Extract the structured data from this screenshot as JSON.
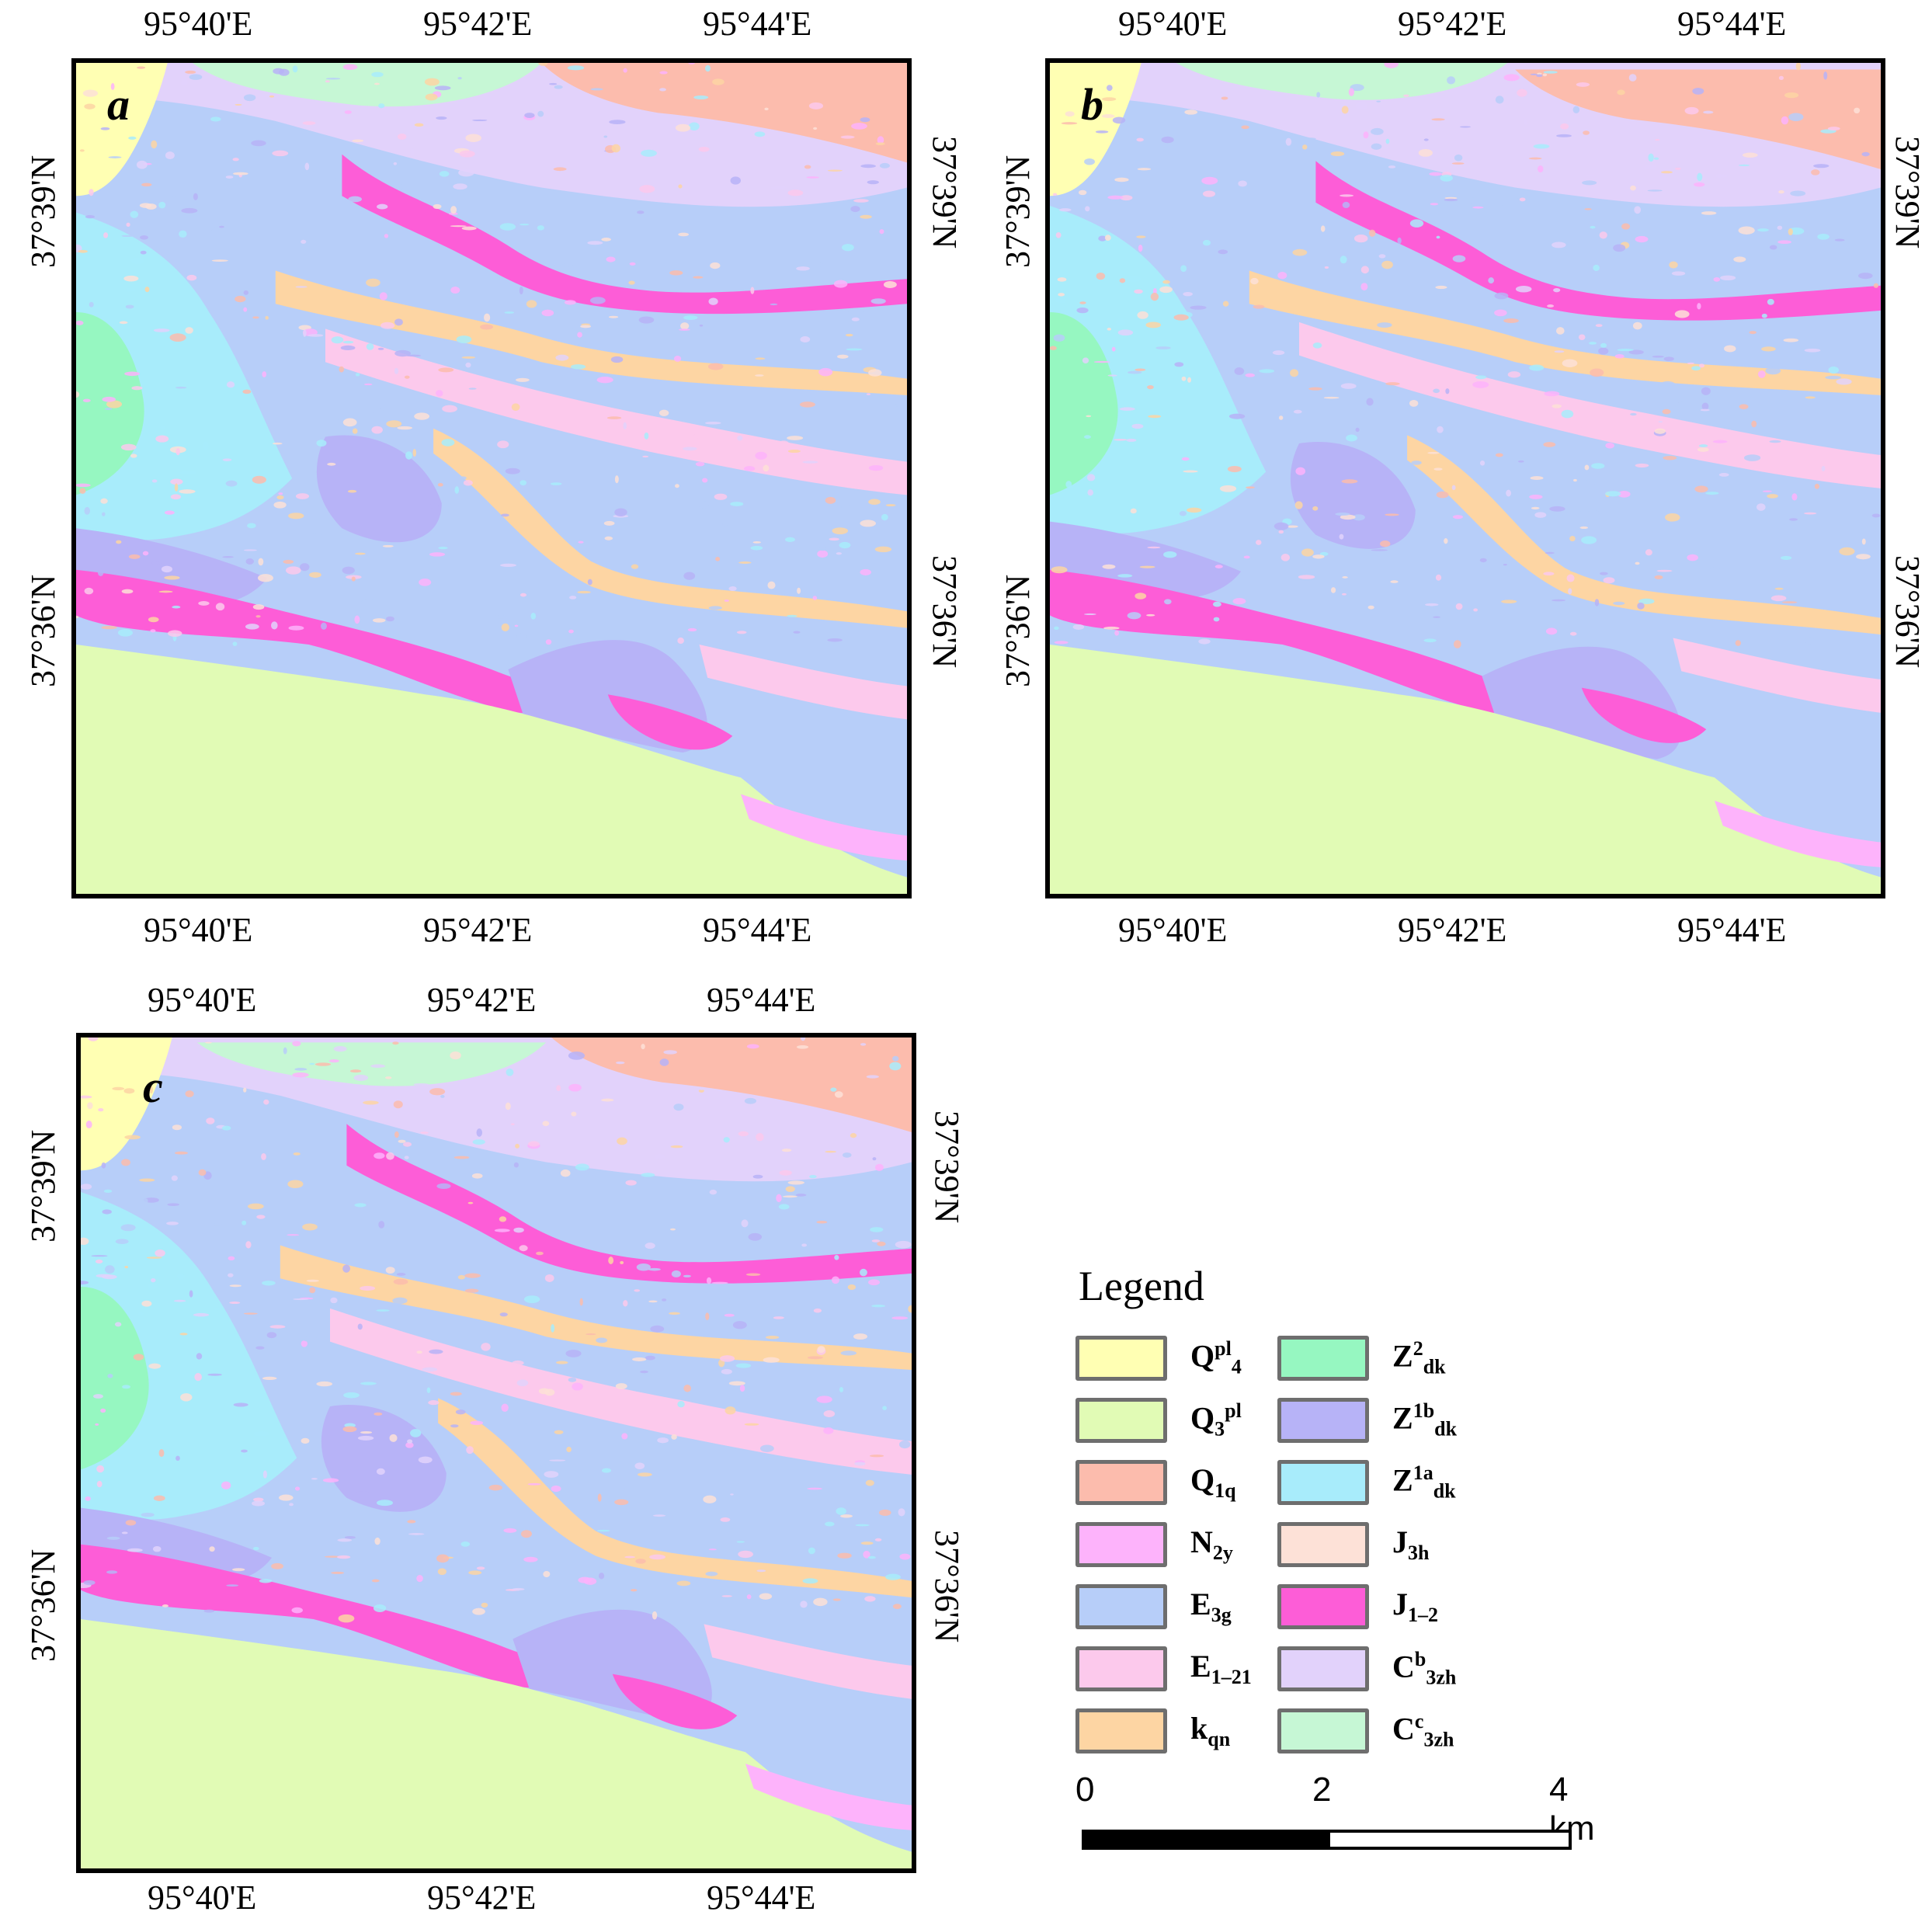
{
  "panels": [
    {
      "id": "a",
      "letter": "a",
      "top_ticks": [
        "95°40'E",
        "95°42'E",
        "95°44'E"
      ],
      "bottom_ticks": [
        "95°40'E",
        "95°42'E",
        "95°44'E"
      ],
      "left_ticks": [
        "37°39'N",
        "37°36'N"
      ],
      "right_ticks": [
        "37°39'N",
        "37°36'N"
      ]
    },
    {
      "id": "b",
      "letter": "b",
      "top_ticks": [
        "95°40'E",
        "95°42'E",
        "95°44'E"
      ],
      "bottom_ticks": [
        "95°40'E",
        "95°42'E",
        "95°44'E"
      ],
      "left_ticks": [
        "37°39'N",
        "37°36'N"
      ],
      "right_ticks": [
        "37°39'N",
        "37°36'N"
      ]
    },
    {
      "id": "c",
      "letter": "c",
      "top_ticks": [
        "95°40'E",
        "95°42'E",
        "95°44'E"
      ],
      "bottom_ticks": [
        "95°40'E",
        "95°42'E",
        "95°44'E"
      ],
      "left_ticks": [
        "37°39'N",
        "37°36'N"
      ],
      "right_ticks": [
        "37°39'N",
        "37°36'N"
      ]
    }
  ],
  "legend": {
    "title": "Legend",
    "items": [
      {
        "base": "Q",
        "sup": "pl",
        "sub": "4",
        "order": "sup-sub",
        "color": "#ffffb3"
      },
      {
        "base": "Q",
        "sup": "pl",
        "sub": "3",
        "order": "sub-sup",
        "color": "#e1fbb5"
      },
      {
        "base": "Q",
        "sup": "",
        "sub": "1q",
        "order": "sub",
        "color": "#fcbcad"
      },
      {
        "base": "N",
        "sup": "",
        "sub": "2y",
        "order": "sub",
        "color": "#fdb3fb"
      },
      {
        "base": "E",
        "sup": "",
        "sub": "3g",
        "order": "sub",
        "color": "#b7cef9"
      },
      {
        "base": "E",
        "sup": "",
        "sub": "1–21",
        "order": "sub",
        "color": "#fcc9ec"
      },
      {
        "base": "k",
        "sup": "",
        "sub": "qn",
        "order": "sub",
        "color": "#fdd5a3"
      },
      {
        "base": "Z",
        "sup": "2",
        "sub": "dk",
        "order": "sup-sub",
        "color": "#96f7c1"
      },
      {
        "base": "Z",
        "sup": "1b",
        "sub": "dk",
        "order": "sup-sub",
        "color": "#b7b3f7"
      },
      {
        "base": "Z",
        "sup": "1a",
        "sub": "dk",
        "order": "sup-sub",
        "color": "#a8ecfb"
      },
      {
        "base": "J",
        "sup": "",
        "sub": "3h",
        "order": "sub",
        "color": "#fde1d7"
      },
      {
        "base": "J",
        "sup": "",
        "sub": "1–2",
        "order": "sub",
        "color": "#fd5dd7"
      },
      {
        "base": "C",
        "sup": "b",
        "sub": "3zh",
        "order": "sup-sub",
        "color": "#e2d2fb"
      },
      {
        "base": "C",
        "sup": "c",
        "sub": "3zh",
        "order": "sup-sub",
        "color": "#c6f7d5"
      }
    ]
  },
  "scale_bar": {
    "labels": [
      "0",
      "2",
      "4 km"
    ],
    "values_km": [
      0,
      2,
      4
    ]
  }
}
